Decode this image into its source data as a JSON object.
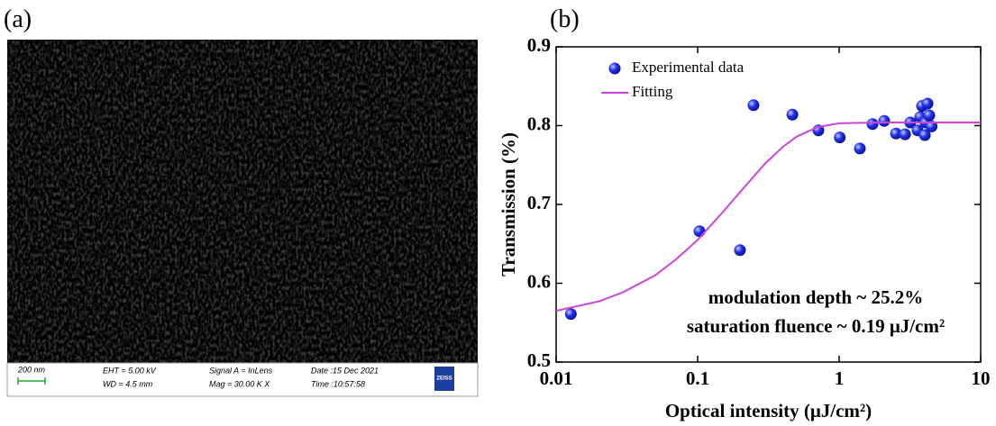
{
  "panel_labels": [
    "(a)",
    "(b)"
  ],
  "sem_image": {
    "scale_bar": "200 nm",
    "eht": "EHT = 5.00 kV",
    "wd": "WD = 4.5 mm",
    "signal": "Signal A = InLens",
    "mag": "Mag = 30.00 K X",
    "date": "Date :15 Dec 2021",
    "time": "Time :10:57:58",
    "logo": "ZEISS"
  },
  "chart_data": {
    "type": "scatter",
    "x_label": "Optical intensity (μJ/cm²)",
    "y_label": "Transmission (%)",
    "annotations": [
      "modulation depth ~ 25.2%",
      "saturation fluence ~ 0.19 μJ/cm²"
    ],
    "xlim": [
      0.01,
      10
    ],
    "xticks": [
      0.01,
      0.1,
      1,
      10
    ],
    "x_log": true,
    "ylim": [
      0.5,
      0.9
    ],
    "yticks": [
      0.5,
      0.6,
      0.7,
      0.8,
      0.9
    ],
    "legend": "upper left",
    "series": [
      {
        "name": "Experimental data",
        "color": "#1f2fe0",
        "mode": "markers",
        "x": [
          0.0127,
          0.103,
          0.199,
          0.248,
          0.467,
          0.713,
          1.01,
          1.4,
          1.72,
          2.08,
          2.52,
          2.92,
          3.18,
          3.58,
          3.74,
          3.85,
          4.03,
          4.08,
          4.21,
          4.33,
          4.5
        ],
        "values": [
          0.561,
          0.666,
          0.642,
          0.826,
          0.814,
          0.794,
          0.785,
          0.771,
          0.802,
          0.806,
          0.79,
          0.789,
          0.804,
          0.794,
          0.811,
          0.825,
          0.788,
          0.804,
          0.828,
          0.813,
          0.799
        ]
      },
      {
        "name": "Fitting",
        "color": "#cc44dd",
        "mode": "line",
        "x": [
          0.01,
          0.02,
          0.03,
          0.05,
          0.07,
          0.1,
          0.15,
          0.2,
          0.3,
          0.4,
          0.5,
          0.7,
          1,
          2,
          5,
          10
        ],
        "values": [
          0.565,
          0.577,
          0.589,
          0.61,
          0.63,
          0.655,
          0.69,
          0.716,
          0.752,
          0.773,
          0.786,
          0.798,
          0.803,
          0.804,
          0.804,
          0.804
        ]
      }
    ]
  }
}
